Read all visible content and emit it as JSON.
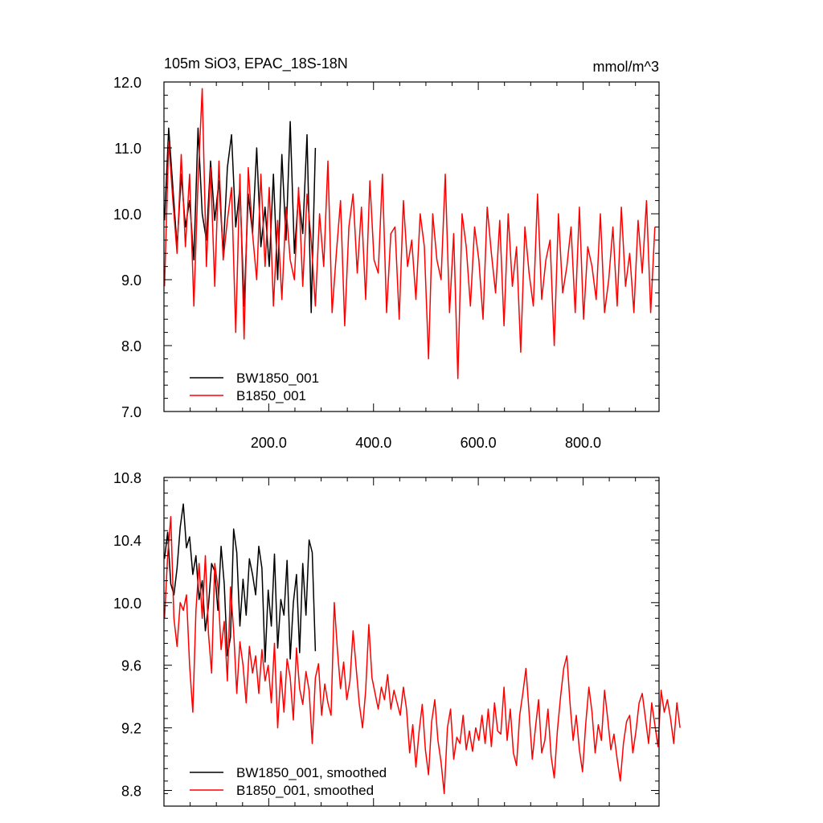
{
  "colors": {
    "BW1850_001": "#000000",
    "B1850_001": "#ff0000"
  },
  "chart_data": [
    {
      "type": "line",
      "title": "105m SiO3, EPAC_18S-18N",
      "units": "mmol/m^3",
      "xlim": [
        0,
        945
      ],
      "ylim": [
        7.0,
        12.0
      ],
      "x_ticks": [
        200,
        400,
        600,
        800
      ],
      "x_tick_labels": [
        "200.0",
        "400.0",
        "600.0",
        "800.0"
      ],
      "y_ticks": [
        7,
        8,
        9,
        10,
        11,
        12
      ],
      "y_tick_labels": [
        "7.0",
        "8.0",
        "9.0",
        "10.0",
        "11.0",
        "12.0"
      ],
      "legend": [
        "BW1850_001",
        "B1850_001"
      ],
      "legend_position": "bottom-left",
      "series": [
        {
          "name": "BW1850_001",
          "color": "#000000",
          "x_start": 1,
          "x_step": 8,
          "values": [
            9.9,
            11.3,
            10.4,
            9.5,
            10.6,
            9.8,
            10.2,
            9.3,
            11.3,
            10.0,
            9.6,
            10.8,
            9.9,
            10.5,
            9.4,
            10.7,
            11.2,
            9.8,
            10.4,
            8.6,
            10.3,
            9.7,
            11.0,
            9.5,
            10.1,
            9.2,
            10.6,
            9.0,
            10.9,
            9.6,
            11.4,
            9.4,
            10.3,
            9.7,
            11.2,
            8.5,
            11.0
          ]
        },
        {
          "name": "B1850_001",
          "color": "#ff0000",
          "x_start": 1,
          "x_step": 8,
          "values": [
            8.9,
            11.1,
            10.2,
            9.4,
            10.9,
            9.5,
            10.6,
            8.6,
            10.5,
            11.9,
            9.2,
            10.7,
            8.9,
            10.8,
            9.3,
            9.9,
            10.4,
            8.2,
            10.6,
            8.1,
            10.7,
            9.7,
            9.0,
            10.6,
            9.2,
            10.4,
            8.6,
            9.9,
            8.7,
            10.1,
            9.3,
            9.0,
            10.4,
            8.9,
            10.3,
            9.6,
            8.6,
            10.0,
            9.2,
            10.8,
            8.5,
            9.4,
            10.2,
            8.3,
            9.8,
            10.3,
            9.1,
            10.1,
            8.7,
            10.5,
            9.3,
            9.1,
            10.6,
            8.5,
            9.7,
            9.8,
            8.4,
            10.2,
            9.2,
            9.6,
            8.7,
            10.0,
            9.5,
            7.8,
            10.0,
            9.3,
            9.0,
            10.6,
            8.5,
            9.7,
            7.5,
            10.0,
            9.5,
            8.6,
            9.8,
            9.3,
            8.4,
            10.1,
            9.4,
            8.8,
            9.9,
            8.3,
            10.0,
            8.9,
            9.5,
            7.9,
            9.8,
            9.1,
            8.6,
            10.3,
            8.7,
            9.3,
            9.6,
            8.0,
            10.0,
            8.8,
            9.2,
            9.8,
            8.5,
            10.1,
            8.4,
            9.5,
            9.2,
            8.7,
            10.0,
            8.5,
            9.0,
            9.8,
            8.6,
            10.1,
            8.9,
            9.4,
            8.5,
            9.9,
            9.1,
            10.2,
            8.5,
            9.8
          ]
        }
      ]
    },
    {
      "type": "line",
      "xlim": [
        0,
        945
      ],
      "ylim": [
        8.7,
        10.8
      ],
      "y_ticks": [
        8.8,
        9.2,
        9.6,
        10.0,
        10.4,
        10.8
      ],
      "y_tick_labels": [
        "8.8",
        "9.2",
        "9.6",
        "10.0",
        "10.4",
        "10.8"
      ],
      "legend": [
        "BW1850_001, smoothed",
        "B1850_001, smoothed"
      ],
      "legend_position": "bottom-left",
      "series": [
        {
          "name": "BW1850_001, smoothed",
          "color": "#000000",
          "x_start": 1,
          "x_step": 6,
          "values": [
            10.28,
            10.45,
            10.12,
            10.05,
            10.22,
            10.48,
            10.63,
            10.35,
            10.42,
            10.18,
            10.3,
            10.02,
            10.14,
            9.82,
            9.98,
            10.25,
            10.2,
            9.95,
            10.36,
            10.12,
            9.66,
            9.78,
            10.47,
            10.32,
            9.85,
            10.15,
            9.92,
            10.28,
            10.18,
            10.05,
            10.36,
            10.22,
            9.62,
            10.08,
            9.85,
            10.31,
            9.71,
            10.02,
            9.92,
            10.27,
            9.64,
            10.0,
            10.18,
            9.68,
            10.25,
            9.92,
            10.4,
            10.32,
            9.69
          ]
        },
        {
          "name": "B1850_001, smoothed",
          "color": "#ff0000",
          "x_start": 1,
          "x_step": 6,
          "values": [
            9.9,
            10.3,
            10.55,
            9.9,
            9.72,
            10.0,
            9.95,
            10.05,
            9.6,
            9.3,
            9.95,
            10.25,
            9.9,
            10.3,
            9.8,
            9.55,
            10.25,
            10.1,
            9.7,
            9.88,
            9.5,
            10.1,
            9.82,
            9.42,
            9.75,
            9.6,
            9.36,
            9.72,
            9.55,
            9.66,
            9.42,
            9.7,
            9.5,
            9.6,
            9.36,
            9.74,
            9.2,
            9.56,
            9.3,
            9.64,
            9.52,
            9.25,
            9.71,
            9.45,
            9.35,
            9.56,
            9.44,
            9.1,
            9.52,
            9.61,
            9.28,
            9.48,
            9.36,
            9.28,
            10.0,
            9.7,
            9.45,
            9.62,
            9.38,
            9.5,
            9.82,
            9.58,
            9.35,
            9.2,
            9.44,
            9.86,
            9.52,
            9.42,
            9.32,
            9.46,
            9.38,
            9.54,
            9.32,
            9.44,
            9.36,
            9.28,
            9.46,
            9.32,
            9.04,
            9.22,
            8.95,
            9.18,
            9.35,
            9.06,
            8.9,
            9.24,
            9.38,
            9.12,
            8.98,
            8.78,
            9.2,
            9.32,
            9.0,
            9.14,
            9.1,
            9.28,
            9.06,
            9.18,
            9.05,
            9.2,
            9.12,
            9.28,
            9.1,
            9.32,
            9.08,
            9.36,
            9.18,
            9.16,
            9.46,
            9.12,
            9.32,
            9.04,
            8.96,
            9.28,
            9.42,
            9.58,
            9.3,
            9.0,
            9.2,
            9.38,
            9.04,
            9.12,
            9.32,
            9.02,
            8.88,
            9.18,
            9.4,
            9.58,
            9.66,
            9.36,
            9.12,
            9.28,
            9.06,
            8.92,
            9.22,
            9.46,
            9.3,
            9.04,
            9.22,
            9.12,
            9.44,
            9.26,
            9.06,
            9.16,
            9.0,
            8.86,
            9.1,
            9.24,
            9.28,
            9.04,
            9.18,
            9.36,
            9.42,
            9.26,
            9.1,
            9.36,
            9.22,
            9.08,
            9.44,
            9.3,
            9.38,
            9.26,
            9.1,
            9.36,
            9.2
          ]
        }
      ]
    }
  ]
}
